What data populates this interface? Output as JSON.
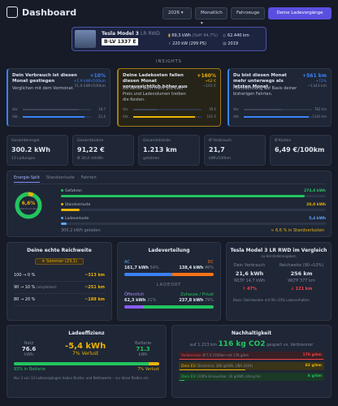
{
  "header": {
    "title": "Dashboard",
    "year": "2026",
    "period": "Monatlich",
    "vehicles_button": "Fahrzeuge",
    "charging_button": "Deine Ladevorgänge"
  },
  "vehicle": {
    "name": "Tesla Model 3",
    "variant": "LR RWD",
    "plate": "B·LV 1337 E",
    "battery": "69,3 kWh",
    "soh": "(SoH 94,7%)",
    "mileage": "62.440 km",
    "power": "220 kW (299 PS)",
    "year": "2019"
  },
  "insights": {
    "label": "INSIGHTS",
    "cards": [
      {
        "title": "Dein Verbrauch ist diesen Monat gestiegen",
        "change": "+10%",
        "delta": "+1,9 kWh/100km",
        "current": "21,6 kWh/100km",
        "text": "Verglichen mit dem Vormonat.",
        "prev_label": "Vor.",
        "prev_value": "19,7",
        "curr_label": "Akt.",
        "curr_value": "21,6"
      },
      {
        "title": "Deine Ladekosten fallen diesen Monat voraussichtlich höher aus",
        "change": "+160%",
        "delta": "+62 €",
        "current": "~101 €",
        "text": "Du zahlst auch mehr pro kWh - Preis und Ladevolumen treiben die Kosten.",
        "prev_label": "Vor.",
        "prev_value": "39 €",
        "curr_label": "Akt.",
        "curr_value": "101 €"
      },
      {
        "title": "Du bist diesen Monat mehr unterwegs als letzten Monat",
        "change": "+561 km",
        "delta": "+72%",
        "current": "~1343 km",
        "text": "Hochrechnung auf Basis deiner bisherigen Fahrten.",
        "prev_label": "Vor.",
        "prev_value": "782 km",
        "curr_label": "Akt.",
        "curr_value": "1343 km"
      }
    ]
  },
  "kpis": [
    {
      "label": "Gesamtenergie",
      "value": "300.2 kWh",
      "sub": "13 Ladungen"
    },
    {
      "label": "Gesamtkosten",
      "value": "91,22 €",
      "sub": "Ø 30,4 ct/kWh"
    },
    {
      "label": "Gesamtstrecke",
      "value": "1.213 km",
      "sub": "gefahren"
    },
    {
      "label": "Ø Verbrauch",
      "value": "21,7",
      "sub": "kWh/100km"
    },
    {
      "label": "Ø Kosten",
      "value": "6,49 €/100km",
      "sub": ""
    }
  ],
  "energy_split": {
    "tabs": [
      "Energie-Split",
      "Standverluste",
      "Fahrten"
    ],
    "donut_value": "6,6%",
    "donut_label": "Standverluste",
    "rows": [
      {
        "name": "Gefahren",
        "value": "274,8 kWh"
      },
      {
        "name": "Standverluste",
        "value": "20,0 kWh"
      },
      {
        "name": "Ladeverluste",
        "value": "5,4 kWh"
      }
    ],
    "footer_left": "300,2 kWh geladen",
    "footer_right": "≈ 6,6 % in Standverlusten"
  },
  "range": {
    "title": "Deine echte Reichweite",
    "season": "Sommer (23,1)",
    "rows": [
      {
        "label": "100 → 0 %",
        "note": "",
        "value": "~313 km"
      },
      {
        "label": "90 → 10 %",
        "note": "(empfohlen)",
        "value": "~251 km"
      },
      {
        "label": "80 → 20 %",
        "note": "",
        "value": "~188 km"
      }
    ]
  },
  "distribution": {
    "title": "Ladeverteilung",
    "ac_label": "AC",
    "ac_value": "161,7 kWh",
    "ac_share": "54%",
    "dc_label": "DC",
    "dc_value": "138,4 kWh",
    "dc_share": "46%",
    "location_label": "LADEORT",
    "public_label": "Öffentlich",
    "public_value": "62,3 kWh",
    "public_share": "21%",
    "home_label": "Zuhause / Privat",
    "home_value": "237,8 kWh",
    "home_share": "79%"
  },
  "comparison": {
    "title": "Tesla Model 3 LR RWD im Vergleich",
    "subtitle": "zu Herstellerangaben",
    "consumption_label": "Dein Verbrauch",
    "consumption_value": "21,6 kWh",
    "consumption_wltp": "WLTP 14,7 kWh",
    "consumption_diff": "↑ 47%",
    "range_label": "Reichweite (90→10%)",
    "range_value": "256 km",
    "range_wltp": "WLTP 377 km",
    "range_diff": "↓ 121 km",
    "footnote": "Basis: Reichweiten mit 90→10% Ladeverhalten"
  },
  "efficiency": {
    "title": "Ladeeffizienz",
    "grid_label": "Netz",
    "grid_value": "76.6",
    "grid_unit": "kWh",
    "loss_value": "-5,4 kWh",
    "loss_share": "7% Verlust",
    "battery_label": "Batterie",
    "battery_value": "71.3",
    "battery_unit": "kWh",
    "bar_left": "93% in Batterie",
    "bar_right": "7% Verlust",
    "footnote": "Nur 2 von 13 Ladevorgängen haben Brutto- und Nettowerte – nur diese fließen ein."
  },
  "sustainability": {
    "title": "Nachhaltigkeit",
    "prefix": "auf 1.213 km",
    "saved": "116 kg CO2",
    "suffix": "gespart vs. Verbrenner",
    "rows": [
      {
        "label": "Verbrenner",
        "note": "Ø 7,5 l/100km mit 178 g/km",
        "value": "178 g/km"
      },
      {
        "label": "Dein EV",
        "note": "(Strommix: 380 g/kWh, UBA 2024)",
        "value": "82 g/km"
      },
      {
        "label": "Dein EV",
        "note": "(100% Erneuerbar: 30 g/kWh Lifecycle)",
        "value": "6 g/km"
      }
    ]
  }
}
